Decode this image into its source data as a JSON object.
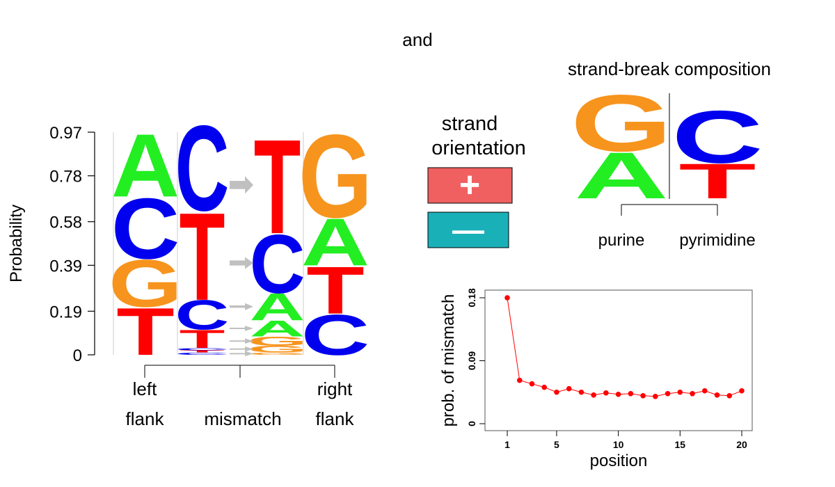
{
  "header": {
    "conjunction": "and"
  },
  "logo": {
    "ylabel": "Probability",
    "ytick_labels": [
      "0",
      "0.19",
      "0.39",
      "0.58",
      "0.78",
      "0.97"
    ],
    "ytick_values": [
      0,
      0.19,
      0.39,
      0.58,
      0.78,
      0.97
    ],
    "bottom_labels": {
      "left_line1": "left",
      "left_line2": "flank",
      "mismatch": "mismatch",
      "right_line1": "right",
      "right_line2": "flank"
    },
    "colors": {
      "A": "#22ee22",
      "C": "#0000ee",
      "G": "#f7941d",
      "T": "#ff0000",
      "arrow": "#c0c0c0"
    }
  },
  "strand": {
    "title_line1": "strand",
    "title_line2": "orientation",
    "plus_symbol": "+",
    "minus_symbol": "—",
    "plus_color": "#f06060",
    "minus_color": "#1ab0b8"
  },
  "strand_break": {
    "title": "strand-break composition",
    "purine_label": "purine",
    "pyrimidine_label": "pyrimidine",
    "purine_letters": [
      {
        "letter": "G",
        "prob": 0.55
      },
      {
        "letter": "A",
        "prob": 0.45
      }
    ],
    "pyrimidine_letters": [
      {
        "letter": "C",
        "prob": 0.6
      },
      {
        "letter": "T",
        "prob": 0.4
      }
    ]
  },
  "chart_data": [
    {
      "type": "sequence_logo",
      "ylabel": "Probability",
      "ylim": [
        0,
        0.97
      ],
      "columns": [
        {
          "region": "left flank",
          "stack": [
            {
              "letter": "T",
              "prob": 0.21
            },
            {
              "letter": "G",
              "prob": 0.21
            },
            {
              "letter": "C",
              "prob": 0.27
            },
            {
              "letter": "A",
              "prob": 0.28
            }
          ]
        },
        {
          "region": "left flank",
          "stack": [
            {
              "letter": "C",
              "prob": 0.01
            },
            {
              "letter": "T",
              "prob": 0.01
            },
            {
              "letter": "C",
              "prob": 0.01
            },
            {
              "letter": "T",
              "prob": 0.08
            },
            {
              "letter": "C",
              "prob": 0.13
            },
            {
              "letter": "T",
              "prob": 0.39
            },
            {
              "letter": "C",
              "prob": 0.38
            }
          ]
        },
        {
          "region": "mismatch",
          "stack": [
            {
              "letter": "G",
              "prob": 0.01
            },
            {
              "letter": "G",
              "prob": 0.03
            },
            {
              "letter": "G",
              "prob": 0.04
            },
            {
              "letter": "A",
              "prob": 0.07
            },
            {
              "letter": "A",
              "prob": 0.12
            },
            {
              "letter": "C",
              "prob": 0.26
            },
            {
              "letter": "T",
              "prob": 0.42
            }
          ]
        },
        {
          "region": "right flank",
          "stack": [
            {
              "letter": "C",
              "prob": 0.18
            },
            {
              "letter": "T",
              "prob": 0.21
            },
            {
              "letter": "A",
              "prob": 0.21
            },
            {
              "letter": "G",
              "prob": 0.37
            }
          ]
        }
      ]
    },
    {
      "type": "line",
      "xlabel": "position",
      "ylabel": "prob. of mismatch",
      "xlim": [
        1,
        20
      ],
      "ylim": [
        0,
        0.18
      ],
      "xticks": [
        1,
        5,
        10,
        15,
        20
      ],
      "yticks": [
        0,
        0.09,
        0.18
      ],
      "ytick_labels": [
        "0",
        "0.09",
        "0.18"
      ],
      "color": "#ff0000",
      "x": [
        1,
        2,
        3,
        4,
        5,
        6,
        7,
        8,
        9,
        10,
        11,
        12,
        13,
        14,
        15,
        16,
        17,
        18,
        19,
        20
      ],
      "y": [
        0.18,
        0.062,
        0.057,
        0.052,
        0.045,
        0.05,
        0.045,
        0.041,
        0.044,
        0.042,
        0.043,
        0.04,
        0.039,
        0.043,
        0.045,
        0.043,
        0.047,
        0.041,
        0.04,
        0.047
      ]
    }
  ]
}
